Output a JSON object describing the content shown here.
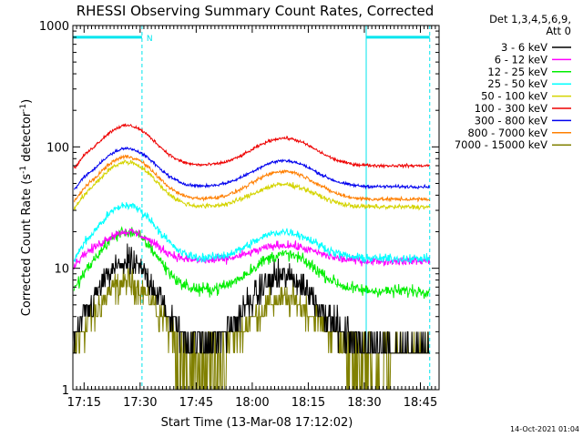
{
  "chart_data": {
    "type": "line",
    "title": "RHESSI Observing Summary Count Rates, Corrected",
    "xlabel": "Start Time (13-Mar-08 17:12:02)",
    "ylabel_main": "Corrected Count Rate (s",
    "ylabel_sup1": "-1",
    "ylabel_mid": " detector",
    "ylabel_sup2": "-1",
    "ylabel_end": ")",
    "x_unit": "minutes after 17:12:02 UT",
    "x_range": [
      0,
      98
    ],
    "y_scale": "log",
    "y_range": [
      1,
      1000
    ],
    "x_ticks": [
      {
        "t": 3,
        "label": "17:15"
      },
      {
        "t": 18,
        "label": "17:30"
      },
      {
        "t": 33,
        "label": "17:45"
      },
      {
        "t": 48,
        "label": "18:00"
      },
      {
        "t": 63,
        "label": "18:15"
      },
      {
        "t": 78,
        "label": "18:30"
      },
      {
        "t": 93,
        "label": "18:45"
      }
    ],
    "y_ticks": [
      {
        "v": 1,
        "label": "1"
      },
      {
        "v": 10,
        "label": "10"
      },
      {
        "v": 100,
        "label": "100"
      },
      {
        "v": 1000,
        "label": "1000"
      }
    ],
    "legend_header": [
      "Det 1,3,4,5,6,9,",
      "Att 0"
    ],
    "legend_position": "top-right, outside plot",
    "timestamp": "14-Oct-2021 01:04",
    "night_markers": {
      "label": "N",
      "color": "#00e5ee",
      "bar_y": 800,
      "bars": [
        [
          0,
          18.5
        ],
        [
          78.5,
          95.5
        ]
      ],
      "lines": [
        0,
        18.5,
        78.5,
        95.5
      ]
    },
    "peaks": {
      "peak1_t": 14.5,
      "peak2_t": 56.5
    },
    "series": [
      {
        "name": "3 - 6 keV",
        "color": "#000000",
        "base": 2.3,
        "p1": 11,
        "p2": 8.5,
        "noise": 0.25,
        "quantized": true
      },
      {
        "name": "6 - 12 keV",
        "color": "#ff00ff",
        "base": 11.5,
        "p1": 20,
        "p2": 15.5,
        "noise": 0.07
      },
      {
        "name": "12 - 25 keV",
        "color": "#00ee00",
        "base": 6.5,
        "p1": 20,
        "p2": 13,
        "noise": 0.1
      },
      {
        "name": "25 - 50 keV",
        "color": "#00ffff",
        "base": 12,
        "p1": 33,
        "p2": 20,
        "noise": 0.07
      },
      {
        "name": "50 - 100 keV",
        "color": "#d4d400",
        "base": 32,
        "p1": 75,
        "p2": 49,
        "noise": 0.04
      },
      {
        "name": "100 - 300 keV",
        "color": "#ee0000",
        "base": 70,
        "p1": 150,
        "p2": 118,
        "noise": 0.025
      },
      {
        "name": "300 - 800 keV",
        "color": "#0000ee",
        "base": 47,
        "p1": 97,
        "p2": 77,
        "noise": 0.025
      },
      {
        "name": "800 - 7000 keV",
        "color": "#ff7f00",
        "base": 37,
        "p1": 83,
        "p2": 63,
        "noise": 0.03
      },
      {
        "name": "7000 - 15000 keV",
        "color": "#808000",
        "base": 2.1,
        "p1": 7.5,
        "p2": 5.5,
        "noise": 0.25,
        "quantized": true,
        "attenuated_gaps": [
          [
            27,
            41
          ],
          [
            73,
            85
          ]
        ]
      }
    ]
  }
}
